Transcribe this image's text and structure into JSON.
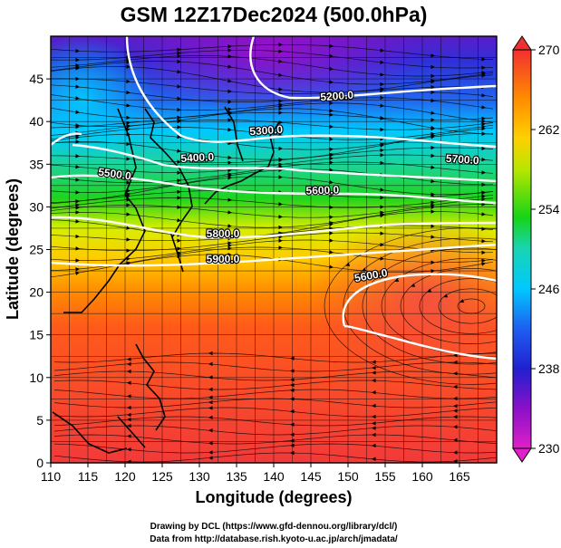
{
  "title": "GSM 12Z17Dec2024 (500.0hPa)",
  "xlabel": "Longitude (degrees)",
  "ylabel": "Latitude  (degrees)",
  "x_ticks": [
    "110",
    "115",
    "120",
    "125",
    "130",
    "135",
    "140",
    "145",
    "150",
    "155",
    "160",
    "165"
  ],
  "y_ticks": [
    "0",
    "5",
    "10",
    "15",
    "20",
    "25",
    "30",
    "35",
    "40",
    "45"
  ],
  "colorbar": {
    "ticks": [
      "230",
      "238",
      "246",
      "254",
      "262",
      "270"
    ]
  },
  "contour_labels": [
    "5200.0",
    "5300.0",
    "5400.0",
    "5500.0",
    "5600.0",
    "5700.0",
    "5800.0",
    "5900.0",
    "5600.0"
  ],
  "credits": {
    "line1": "Drawing by DCL (https://www.gfd-dennou.org/library/dcl/)",
    "line2": "Data from http://database.rish.kyoto-u.ac.jp/arch/jmadata/"
  },
  "colors": {
    "cold": "#c400c4",
    "blue": "#1c1cd6",
    "cyan": "#00ccff",
    "green": "#19d400",
    "yellow": "#f3ef00",
    "orange": "#ff8a00",
    "warm": "#f43030"
  }
}
